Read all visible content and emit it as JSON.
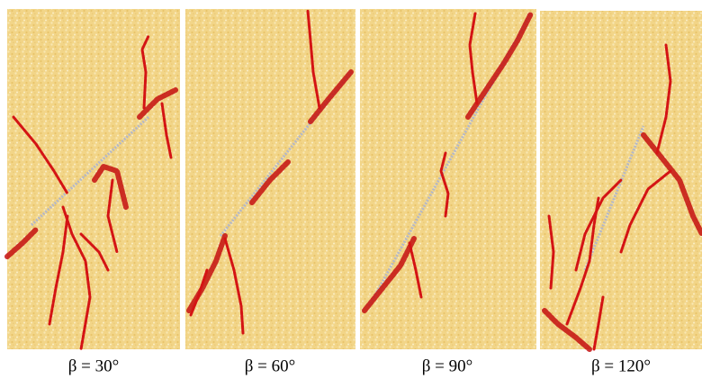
{
  "panels": [
    {
      "label": "β = 30°"
    },
    {
      "label": "β = 60°"
    },
    {
      "label": "β = 90°"
    },
    {
      "label": "β = 120°"
    }
  ]
}
